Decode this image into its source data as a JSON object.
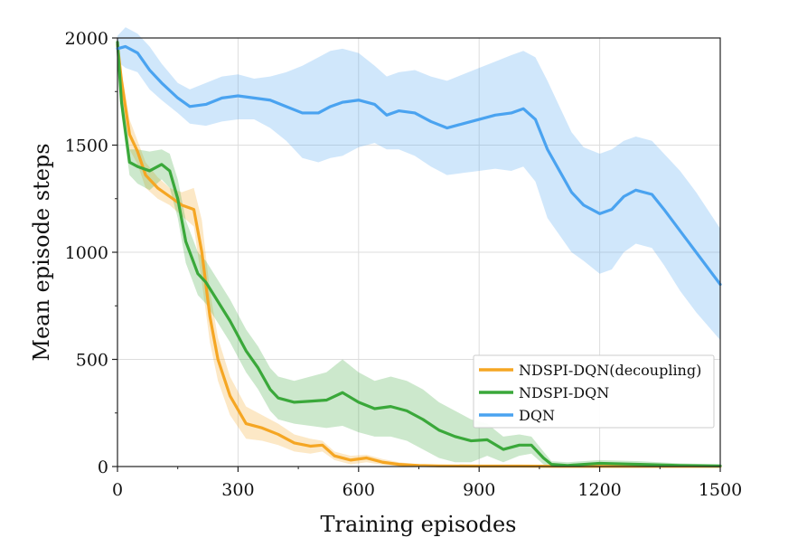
{
  "chart_data": {
    "type": "line",
    "xlabel": "Training episodes",
    "ylabel": "Mean episode steps",
    "xlim": [
      0,
      1500
    ],
    "ylim": [
      0,
      2000
    ],
    "xticks": [
      "0",
      "300",
      "600",
      "900",
      "1200",
      "1500"
    ],
    "yticks": [
      "0",
      "500",
      "1000",
      "1500",
      "2000"
    ],
    "grid": true,
    "legend_position": "lower-right",
    "series": [
      {
        "name": "NDSPI-DQN(decoupling)",
        "color": "#f5a623",
        "band_color": "#f5a623",
        "x": [
          0,
          10,
          30,
          50,
          70,
          100,
          130,
          160,
          190,
          210,
          230,
          250,
          280,
          320,
          360,
          400,
          440,
          480,
          510,
          540,
          580,
          620,
          660,
          700,
          750,
          800,
          900,
          1000,
          1100,
          1200,
          1300,
          1400,
          1500
        ],
        "y": [
          1970,
          1800,
          1550,
          1470,
          1360,
          1300,
          1260,
          1220,
          1200,
          1000,
          700,
          500,
          330,
          200,
          180,
          150,
          110,
          95,
          100,
          50,
          30,
          40,
          20,
          10,
          5,
          3,
          2,
          2,
          1,
          1,
          1,
          1,
          1
        ],
        "upper": [
          1990,
          1850,
          1620,
          1520,
          1420,
          1350,
          1300,
          1280,
          1300,
          1150,
          820,
          600,
          420,
          280,
          240,
          200,
          150,
          130,
          120,
          70,
          50,
          55,
          35,
          20,
          10,
          8,
          5,
          4,
          3,
          3,
          3,
          3,
          3
        ],
        "lower": [
          1950,
          1750,
          1480,
          1410,
          1300,
          1250,
          1220,
          1170,
          1120,
          860,
          580,
          400,
          240,
          130,
          120,
          100,
          70,
          60,
          70,
          30,
          10,
          20,
          8,
          2,
          0,
          0,
          0,
          0,
          0,
          0,
          0,
          0,
          0
        ]
      },
      {
        "name": "NDSPI-DQN",
        "color": "#3aa83a",
        "band_color": "#3aa83a",
        "x": [
          0,
          10,
          30,
          50,
          80,
          110,
          130,
          150,
          170,
          190,
          200,
          220,
          240,
          280,
          320,
          350,
          380,
          400,
          440,
          480,
          520,
          560,
          600,
          640,
          680,
          720,
          760,
          800,
          840,
          880,
          920,
          960,
          1000,
          1030,
          1060,
          1080,
          1120,
          1200,
          1300,
          1400,
          1500
        ],
        "y": [
          1980,
          1700,
          1420,
          1400,
          1380,
          1410,
          1380,
          1250,
          1050,
          950,
          900,
          860,
          800,
          680,
          540,
          460,
          360,
          320,
          300,
          305,
          310,
          345,
          300,
          270,
          280,
          260,
          220,
          170,
          140,
          120,
          125,
          80,
          100,
          100,
          40,
          10,
          5,
          15,
          10,
          5,
          3
        ],
        "upper": [
          2000,
          1760,
          1480,
          1480,
          1470,
          1480,
          1460,
          1340,
          1150,
          1050,
          1000,
          960,
          900,
          780,
          640,
          560,
          460,
          420,
          400,
          420,
          440,
          500,
          440,
          400,
          420,
          400,
          360,
          300,
          260,
          220,
          200,
          140,
          150,
          140,
          70,
          25,
          20,
          30,
          25,
          15,
          10
        ],
        "lower": [
          1960,
          1640,
          1360,
          1320,
          1290,
          1340,
          1300,
          1160,
          950,
          850,
          800,
          760,
          700,
          580,
          440,
          360,
          260,
          220,
          200,
          190,
          180,
          190,
          160,
          140,
          140,
          120,
          80,
          40,
          20,
          20,
          50,
          20,
          50,
          60,
          10,
          0,
          0,
          0,
          0,
          0,
          0
        ]
      },
      {
        "name": "DQN",
        "color": "#4aa3f0",
        "band_color": "#4aa3f0",
        "x": [
          0,
          20,
          50,
          80,
          110,
          150,
          180,
          220,
          260,
          300,
          340,
          380,
          420,
          460,
          500,
          530,
          560,
          600,
          640,
          670,
          700,
          740,
          780,
          820,
          860,
          900,
          940,
          980,
          1010,
          1040,
          1070,
          1100,
          1130,
          1160,
          1200,
          1230,
          1260,
          1290,
          1330,
          1360,
          1400,
          1440,
          1500
        ],
        "y": [
          1950,
          1960,
          1930,
          1850,
          1790,
          1720,
          1680,
          1690,
          1720,
          1730,
          1720,
          1710,
          1680,
          1650,
          1650,
          1680,
          1700,
          1710,
          1690,
          1640,
          1660,
          1650,
          1610,
          1580,
          1600,
          1620,
          1640,
          1650,
          1670,
          1620,
          1480,
          1380,
          1280,
          1220,
          1180,
          1200,
          1260,
          1290,
          1270,
          1200,
          1100,
          1000,
          850
        ],
        "upper": [
          2010,
          2050,
          2020,
          1960,
          1880,
          1790,
          1760,
          1790,
          1820,
          1830,
          1810,
          1820,
          1840,
          1870,
          1910,
          1940,
          1950,
          1930,
          1870,
          1820,
          1840,
          1850,
          1820,
          1800,
          1830,
          1860,
          1890,
          1920,
          1940,
          1910,
          1800,
          1680,
          1560,
          1490,
          1460,
          1480,
          1520,
          1540,
          1520,
          1460,
          1380,
          1280,
          1110
        ],
        "lower": [
          1890,
          1860,
          1840,
          1760,
          1710,
          1650,
          1600,
          1590,
          1610,
          1620,
          1620,
          1580,
          1520,
          1440,
          1420,
          1440,
          1450,
          1490,
          1510,
          1480,
          1480,
          1450,
          1400,
          1360,
          1370,
          1380,
          1390,
          1380,
          1400,
          1330,
          1160,
          1080,
          1000,
          960,
          900,
          920,
          1000,
          1040,
          1020,
          940,
          820,
          720,
          590
        ]
      }
    ]
  }
}
